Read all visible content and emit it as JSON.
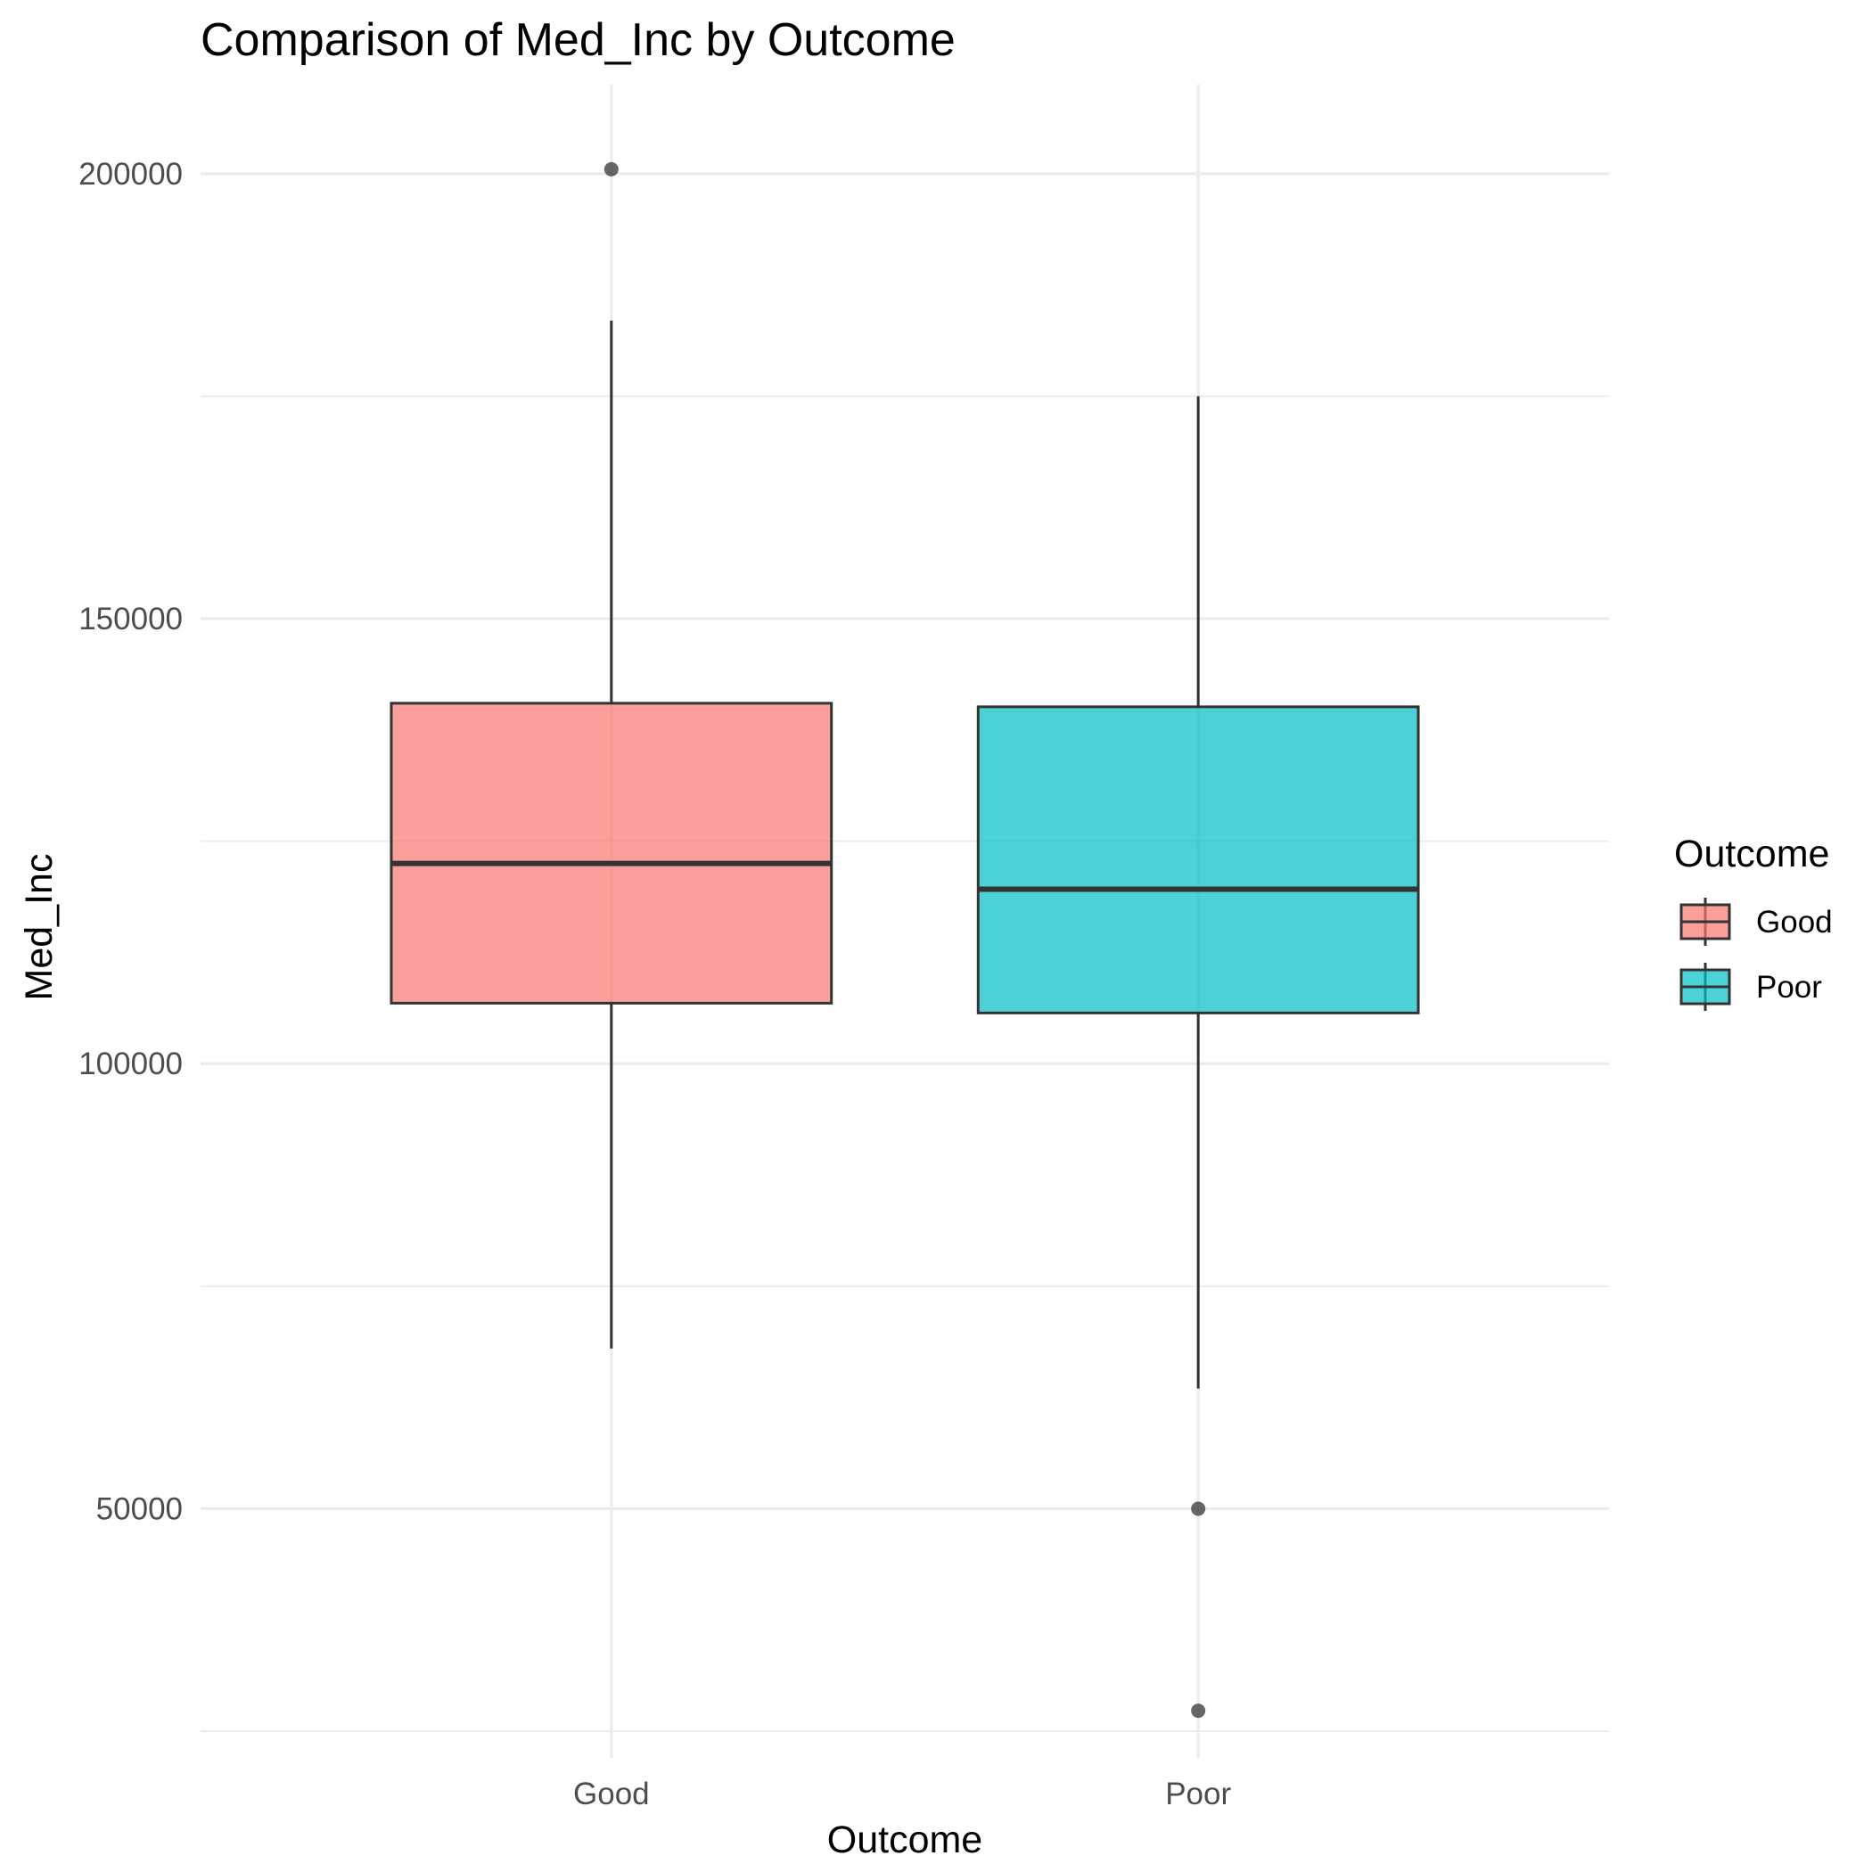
{
  "chart_data": {
    "type": "box",
    "title": "Comparison of Med_Inc by Outcome",
    "xlabel": "Outcome",
    "ylabel": "Med_Inc",
    "categories": [
      "Good",
      "Poor"
    ],
    "y_ticks": [
      50000,
      100000,
      150000,
      200000
    ],
    "y_tick_labels": [
      "50000",
      "100000",
      "150000",
      "200000"
    ],
    "ylim": [
      22000,
      210000
    ],
    "grid": true,
    "legend": {
      "title": "Outcome",
      "position": "right",
      "entries": [
        "Good",
        "Poor"
      ]
    },
    "series": [
      {
        "name": "Good",
        "color": "#F8766D",
        "whisker_low": 68000,
        "q1": 106800,
        "median": 122500,
        "q3": 140500,
        "whisker_high": 183500,
        "outliers": [
          200500
        ]
      },
      {
        "name": "Poor",
        "color": "#00BFC4",
        "whisker_low": 63500,
        "q1": 105700,
        "median": 119600,
        "q3": 140100,
        "whisker_high": 175000,
        "outliers": [
          50000,
          27300
        ]
      }
    ]
  }
}
